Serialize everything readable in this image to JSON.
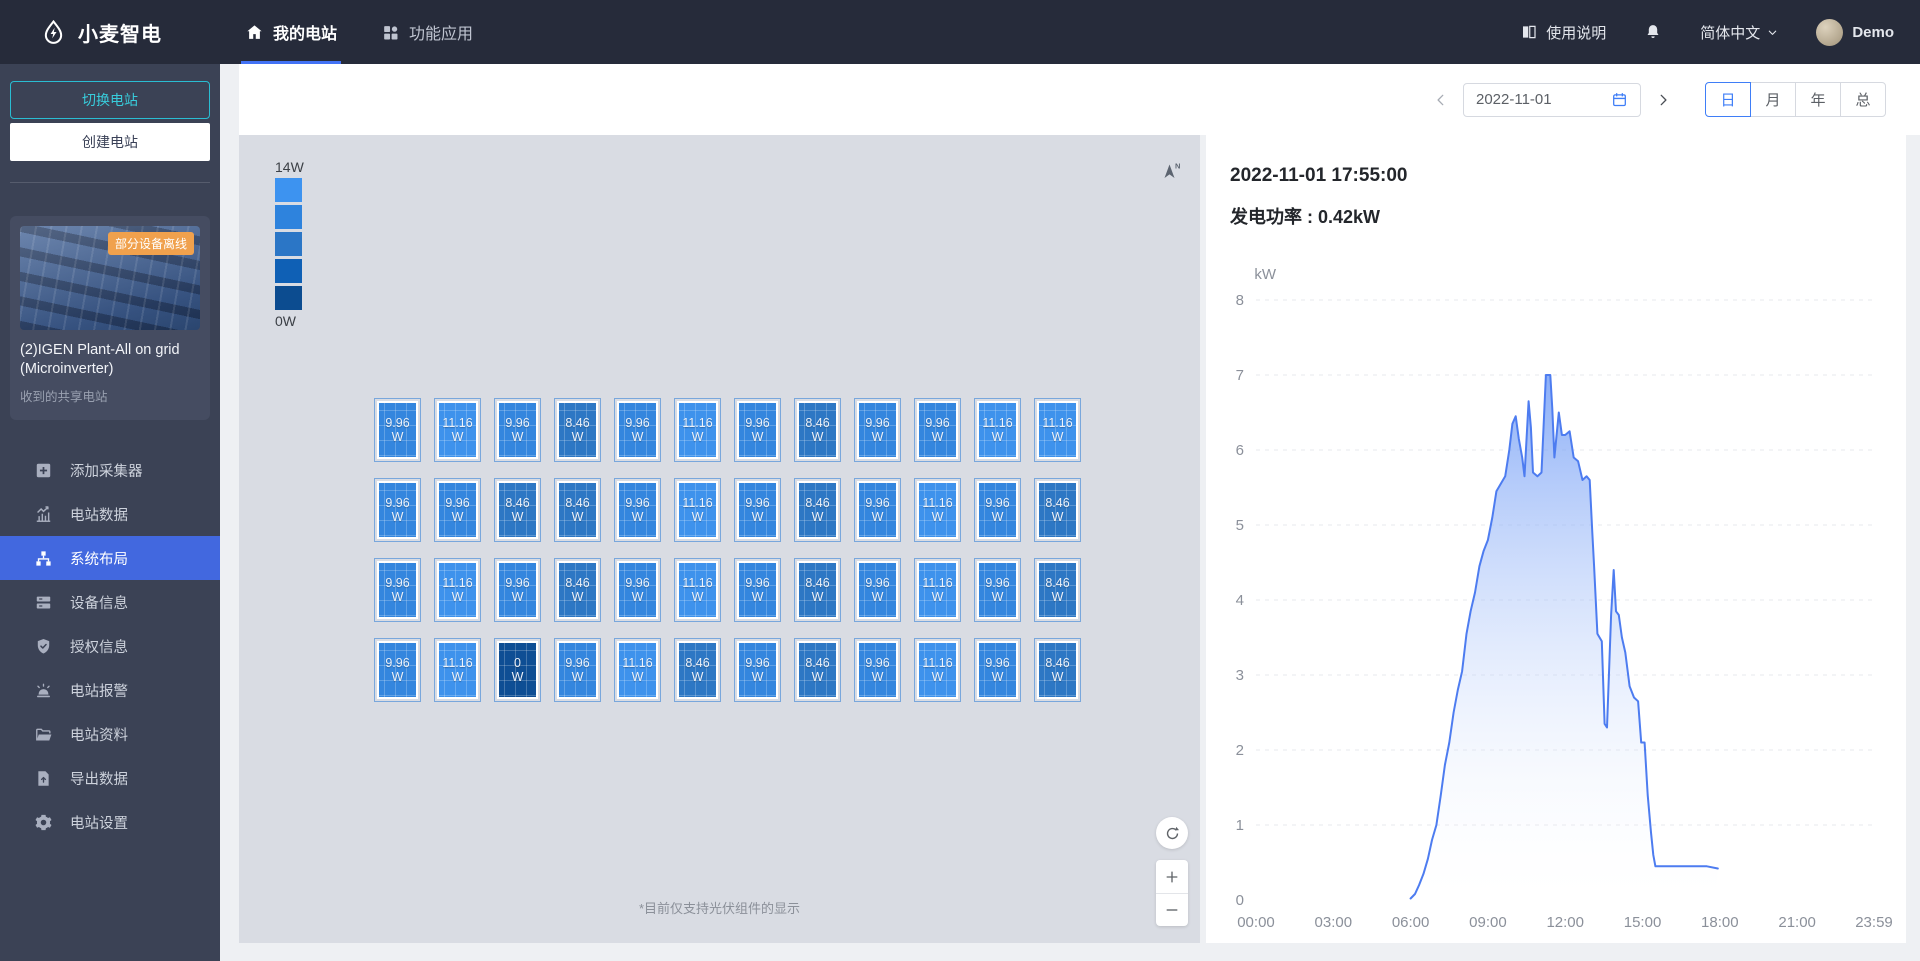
{
  "navbar": {
    "logo_text": "小麦智电",
    "tabs": [
      {
        "label": "我的电站",
        "icon": "home-icon",
        "active": true
      },
      {
        "label": "功能应用",
        "icon": "apps-icon",
        "active": false
      }
    ],
    "help_label": "使用说明",
    "language": "简体中文",
    "user_name": "Demo"
  },
  "sidebar": {
    "switch_plant_label": "切换电站",
    "create_plant_label": "创建电站",
    "plant_card": {
      "badge": "部分设备离线",
      "title": "(2)IGEN Plant-All on grid (Microinverter)",
      "subtitle": "收到的共享电站"
    },
    "menu": [
      {
        "label": "添加采集器",
        "icon": "add-collector-icon",
        "active": false
      },
      {
        "label": "电站数据",
        "icon": "plant-data-icon",
        "active": false
      },
      {
        "label": "系统布局",
        "icon": "system-layout-icon",
        "active": true
      },
      {
        "label": "设备信息",
        "icon": "device-info-icon",
        "active": false
      },
      {
        "label": "授权信息",
        "icon": "authorization-icon",
        "active": false
      },
      {
        "label": "电站报警",
        "icon": "plant-alarm-icon",
        "active": false
      },
      {
        "label": "电站资料",
        "icon": "plant-profile-icon",
        "active": false
      },
      {
        "label": "导出数据",
        "icon": "export-data-icon",
        "active": false
      },
      {
        "label": "电站设置",
        "icon": "plant-settings-icon",
        "active": false
      }
    ]
  },
  "toolbar": {
    "date_value": "2022-11-01",
    "range_tabs": [
      {
        "label": "日",
        "active": true
      },
      {
        "label": "月",
        "active": false
      },
      {
        "label": "年",
        "active": false
      },
      {
        "label": "总",
        "active": false
      }
    ]
  },
  "layout_panel": {
    "scale_max_label": "14W",
    "scale_min_label": "0W",
    "scale_colors": [
      "#3d93f0",
      "#2e83dd",
      "#2b76c6",
      "#0f60b5",
      "#0c4c90"
    ],
    "compass_label": "N",
    "unit": "W",
    "value_colors": {
      "11.16": "#3e92ec",
      "9.96": "#3486de",
      "8.46": "#2d77c4",
      "0": "#0e4e94"
    },
    "panel_rows": [
      [
        "9.96",
        "11.16",
        "9.96",
        "8.46",
        "9.96",
        "11.16",
        "9.96",
        "8.46",
        "9.96",
        "9.96",
        "11.16",
        "11.16"
      ],
      [
        "9.96",
        "9.96",
        "8.46",
        "8.46",
        "9.96",
        "11.16",
        "9.96",
        "8.46",
        "9.96",
        "11.16",
        "9.96",
        "8.46"
      ],
      [
        "9.96",
        "11.16",
        "9.96",
        "8.46",
        "9.96",
        "11.16",
        "9.96",
        "8.46",
        "9.96",
        "11.16",
        "9.96",
        "8.46"
      ],
      [
        "9.96",
        "11.16",
        "0",
        "9.96",
        "11.16",
        "8.46",
        "9.96",
        "8.46",
        "9.96",
        "11.16",
        "9.96",
        "8.46"
      ]
    ],
    "note": "*目前仅支持光伏组件的显示"
  },
  "chart_panel": {
    "timestamp": "2022-11-01 17:55:00",
    "power_label": "发电功率 : 0.42kW"
  },
  "chart_data": {
    "type": "area",
    "title": "发电功率",
    "ylabel": "kW",
    "ylim": [
      0,
      8
    ],
    "yticks": [
      0,
      1,
      2,
      3,
      4,
      5,
      6,
      7,
      8
    ],
    "xticks": [
      "00:00",
      "03:00",
      "06:00",
      "09:00",
      "12:00",
      "15:00",
      "18:00",
      "21:00",
      "23:59"
    ],
    "xtick_hours": [
      0,
      3,
      6,
      9,
      12,
      15,
      18,
      21,
      23.983
    ],
    "x_range_hours": [
      0,
      23.983
    ],
    "grid": "dashed-horizontal",
    "legend_position": "none",
    "series": [
      {
        "name": "发电功率",
        "unit": "kW",
        "color": "#4d7cf0",
        "fill": "gradient-blue-to-white",
        "points": [
          [
            6.0,
            0.02
          ],
          [
            6.17,
            0.08
          ],
          [
            6.33,
            0.2
          ],
          [
            6.5,
            0.35
          ],
          [
            6.67,
            0.55
          ],
          [
            6.83,
            0.8
          ],
          [
            7.0,
            1.0
          ],
          [
            7.17,
            1.4
          ],
          [
            7.33,
            1.8
          ],
          [
            7.5,
            2.1
          ],
          [
            7.67,
            2.5
          ],
          [
            7.83,
            2.8
          ],
          [
            8.0,
            3.05
          ],
          [
            8.17,
            3.55
          ],
          [
            8.33,
            3.85
          ],
          [
            8.5,
            4.1
          ],
          [
            8.67,
            4.45
          ],
          [
            8.83,
            4.65
          ],
          [
            9.0,
            4.8
          ],
          [
            9.17,
            5.1
          ],
          [
            9.33,
            5.45
          ],
          [
            9.5,
            5.55
          ],
          [
            9.67,
            5.65
          ],
          [
            9.83,
            6.0
          ],
          [
            9.95,
            6.35
          ],
          [
            10.08,
            6.45
          ],
          [
            10.2,
            6.15
          ],
          [
            10.33,
            5.9
          ],
          [
            10.42,
            5.65
          ],
          [
            10.58,
            6.65
          ],
          [
            10.67,
            6.3
          ],
          [
            10.75,
            5.7
          ],
          [
            10.92,
            5.65
          ],
          [
            11.08,
            5.7
          ],
          [
            11.25,
            7.0
          ],
          [
            11.42,
            7.0
          ],
          [
            11.5,
            6.55
          ],
          [
            11.58,
            5.9
          ],
          [
            11.75,
            6.5
          ],
          [
            11.87,
            6.2
          ],
          [
            12.0,
            6.2
          ],
          [
            12.17,
            6.25
          ],
          [
            12.33,
            5.9
          ],
          [
            12.5,
            5.85
          ],
          [
            12.67,
            5.6
          ],
          [
            12.83,
            5.65
          ],
          [
            12.95,
            5.6
          ],
          [
            13.05,
            4.9
          ],
          [
            13.12,
            4.45
          ],
          [
            13.25,
            3.55
          ],
          [
            13.42,
            3.45
          ],
          [
            13.53,
            2.35
          ],
          [
            13.62,
            2.3
          ],
          [
            13.78,
            3.8
          ],
          [
            13.88,
            4.4
          ],
          [
            13.97,
            3.85
          ],
          [
            14.08,
            3.8
          ],
          [
            14.2,
            3.5
          ],
          [
            14.33,
            3.3
          ],
          [
            14.5,
            2.85
          ],
          [
            14.67,
            2.7
          ],
          [
            14.83,
            2.65
          ],
          [
            14.95,
            2.1
          ],
          [
            15.08,
            2.1
          ],
          [
            15.2,
            1.4
          ],
          [
            15.33,
            0.9
          ],
          [
            15.42,
            0.6
          ],
          [
            15.5,
            0.45
          ],
          [
            16.0,
            0.45
          ],
          [
            16.5,
            0.45
          ],
          [
            17.0,
            0.45
          ],
          [
            17.5,
            0.45
          ],
          [
            17.92,
            0.42
          ]
        ]
      }
    ]
  }
}
